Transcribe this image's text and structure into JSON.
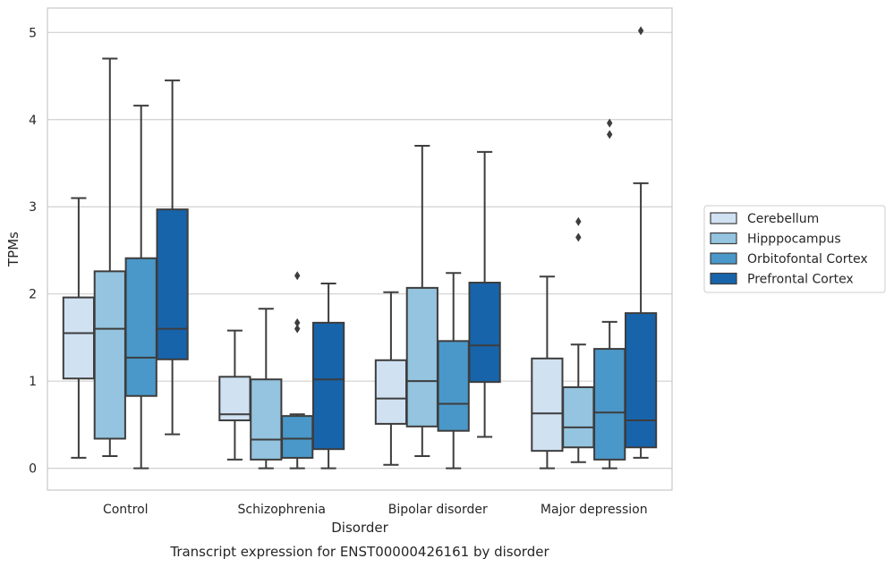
{
  "chart_data": {
    "type": "box",
    "title": "",
    "caption": "Transcript expression for ENST00000426161 by disorder",
    "xlabel": "Disorder",
    "ylabel": "TPMs",
    "ylim": [
      -0.25,
      5.28
    ],
    "yticks": [
      0,
      1,
      2,
      3,
      4,
      5
    ],
    "grid": "horizontal",
    "legend_position": "right",
    "categories": [
      "Control",
      "Schizophrenia",
      "Bipolar disorder",
      "Major depression"
    ],
    "series": [
      {
        "name": "Cerebellum",
        "color": "#d0e1f2",
        "boxes": [
          {
            "whisker_low": 0.12,
            "q1": 1.03,
            "median": 1.55,
            "q3": 1.96,
            "whisker_high": 3.1,
            "outliers": []
          },
          {
            "whisker_low": 0.1,
            "q1": 0.55,
            "median": 0.62,
            "q3": 1.05,
            "whisker_high": 1.58,
            "outliers": []
          },
          {
            "whisker_low": 0.04,
            "q1": 0.51,
            "median": 0.8,
            "q3": 1.24,
            "whisker_high": 2.02,
            "outliers": []
          },
          {
            "whisker_low": 0.0,
            "q1": 0.2,
            "median": 0.63,
            "q3": 1.26,
            "whisker_high": 2.2,
            "outliers": []
          }
        ]
      },
      {
        "name": "Hipppocampus",
        "color": "#94c4df",
        "boxes": [
          {
            "whisker_low": 0.14,
            "q1": 0.34,
            "median": 1.6,
            "q3": 2.26,
            "whisker_high": 4.7,
            "outliers": []
          },
          {
            "whisker_low": 0.0,
            "q1": 0.1,
            "median": 0.33,
            "q3": 1.02,
            "whisker_high": 1.83,
            "outliers": []
          },
          {
            "whisker_low": 0.14,
            "q1": 0.48,
            "median": 1.0,
            "q3": 2.07,
            "whisker_high": 3.7,
            "outliers": []
          },
          {
            "whisker_low": 0.07,
            "q1": 0.24,
            "median": 0.47,
            "q3": 0.93,
            "whisker_high": 1.42,
            "outliers": [
              2.65,
              2.83
            ]
          }
        ]
      },
      {
        "name": "Orbitofontal Cortex",
        "color": "#4a98c9",
        "boxes": [
          {
            "whisker_low": 0.0,
            "q1": 0.83,
            "median": 1.27,
            "q3": 2.41,
            "whisker_high": 4.16,
            "outliers": []
          },
          {
            "whisker_low": 0.0,
            "q1": 0.12,
            "median": 0.34,
            "q3": 0.6,
            "whisker_high": 0.62,
            "outliers": [
              1.6,
              1.67,
              2.21
            ]
          },
          {
            "whisker_low": 0.0,
            "q1": 0.43,
            "median": 0.74,
            "q3": 1.46,
            "whisker_high": 2.24,
            "outliers": []
          },
          {
            "whisker_low": 0.0,
            "q1": 0.1,
            "median": 0.64,
            "q3": 1.37,
            "whisker_high": 1.68,
            "outliers": [
              3.83,
              3.96
            ]
          }
        ]
      },
      {
        "name": "Prefrontal Cortex",
        "color": "#1764ab",
        "boxes": [
          {
            "whisker_low": 0.39,
            "q1": 1.25,
            "median": 1.6,
            "q3": 2.97,
            "whisker_high": 4.45,
            "outliers": []
          },
          {
            "whisker_low": 0.0,
            "q1": 0.22,
            "median": 1.02,
            "q3": 1.67,
            "whisker_high": 2.12,
            "outliers": []
          },
          {
            "whisker_low": 0.36,
            "q1": 0.99,
            "median": 1.41,
            "q3": 2.13,
            "whisker_high": 3.63,
            "outliers": []
          },
          {
            "whisker_low": 0.12,
            "q1": 0.24,
            "median": 0.55,
            "q3": 1.78,
            "whisker_high": 3.27,
            "outliers": [
              5.02
            ]
          }
        ]
      }
    ]
  }
}
